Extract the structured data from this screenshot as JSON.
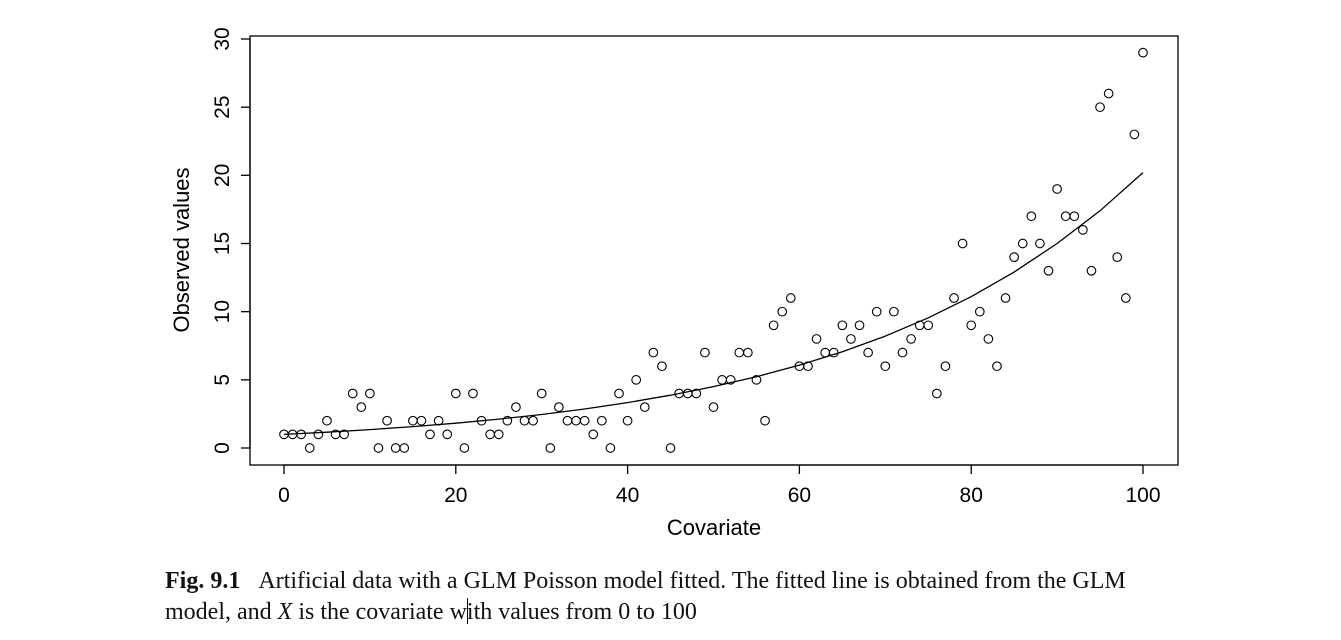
{
  "chart_data": {
    "type": "scatter",
    "xlabel": "Covariate",
    "ylabel": "Observed values",
    "xlim": [
      0,
      100
    ],
    "ylim": [
      0,
      30
    ],
    "xticks": [
      0,
      20,
      40,
      60,
      80,
      100
    ],
    "yticks": [
      0,
      5,
      10,
      15,
      20,
      25,
      30
    ],
    "grid": false,
    "series": [
      {
        "kind": "points",
        "marker": "open-circle",
        "x": [
          0,
          1,
          2,
          3,
          4,
          5,
          6,
          7,
          8,
          9,
          10,
          11,
          12,
          13,
          14,
          15,
          16,
          17,
          18,
          19,
          20,
          21,
          22,
          23,
          24,
          25,
          26,
          27,
          28,
          29,
          30,
          31,
          32,
          33,
          34,
          35,
          36,
          37,
          38,
          39,
          40,
          41,
          42,
          43,
          44,
          45,
          46,
          47,
          48,
          49,
          50,
          51,
          52,
          53,
          54,
          55,
          56,
          57,
          58,
          59,
          60,
          61,
          62,
          63,
          64,
          65,
          66,
          67,
          68,
          69,
          70,
          71,
          72,
          73,
          74,
          75,
          76,
          77,
          78,
          79,
          80,
          81,
          82,
          83,
          84,
          85,
          86,
          87,
          88,
          89,
          90,
          91,
          92,
          93,
          94,
          95,
          96,
          97,
          98,
          99,
          100
        ],
        "y": [
          1,
          1,
          1,
          0,
          1,
          2,
          1,
          1,
          4,
          3,
          4,
          0,
          2,
          0,
          0,
          2,
          2,
          1,
          2,
          1,
          4,
          0,
          4,
          2,
          1,
          1,
          2,
          3,
          2,
          2,
          4,
          0,
          3,
          2,
          2,
          2,
          1,
          2,
          0,
          4,
          2,
          5,
          3,
          7,
          6,
          0,
          4,
          4,
          4,
          7,
          3,
          5,
          5,
          7,
          7,
          5,
          2,
          9,
          10,
          11,
          6,
          6,
          8,
          7,
          7,
          9,
          8,
          9,
          7,
          10,
          6,
          10,
          7,
          8,
          9,
          9,
          4,
          6,
          11,
          15,
          9,
          10,
          8,
          6,
          11,
          14,
          15,
          17,
          15,
          13,
          19,
          17,
          17,
          16,
          13,
          25,
          26,
          14,
          11,
          23,
          29
        ]
      },
      {
        "kind": "fitted-line",
        "x": [
          0,
          5,
          10,
          15,
          20,
          25,
          30,
          35,
          40,
          45,
          50,
          55,
          60,
          65,
          70,
          75,
          80,
          85,
          90,
          95,
          100
        ],
        "y": [
          1.0,
          1.16,
          1.35,
          1.57,
          1.82,
          2.12,
          2.46,
          2.86,
          3.33,
          3.87,
          4.5,
          5.23,
          6.08,
          7.06,
          8.21,
          9.55,
          11.1,
          12.9,
          15.0,
          17.4,
          20.2
        ]
      }
    ]
  },
  "caption": {
    "label": "Fig. 9.1",
    "text_before_x": "Artificial data with a GLM Poisson model fitted. The fitted line is obtained from the GLM model, and ",
    "x_symbol": "X",
    "text_before_cursor": " is the covariate w",
    "text_after_cursor": "ith values from 0 to 100"
  }
}
